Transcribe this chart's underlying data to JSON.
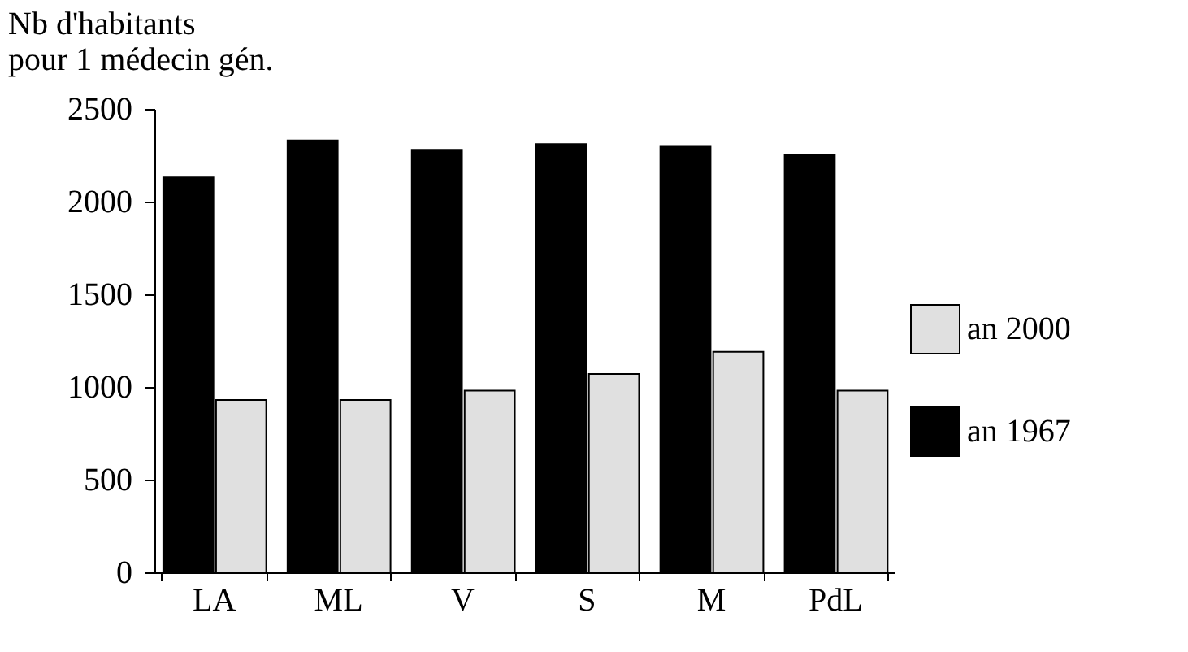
{
  "chart_data": {
    "type": "bar",
    "ylabel": "Nb d'habitants\npour 1 médecin gén.",
    "categories": [
      "LA",
      "ML",
      "V",
      "S",
      "M",
      "PdL"
    ],
    "series": [
      {
        "name": "an 1967",
        "color": "#000000",
        "values": [
          2130,
          2330,
          2280,
          2310,
          2300,
          2250
        ]
      },
      {
        "name": "an 2000",
        "color": "#e0e0e0",
        "values": [
          930,
          930,
          980,
          1070,
          1190,
          980
        ]
      }
    ],
    "ylim": [
      0,
      2500
    ],
    "yticks": [
      0,
      500,
      1000,
      1500,
      2000,
      2500
    ],
    "grid": false,
    "legend": "right"
  }
}
